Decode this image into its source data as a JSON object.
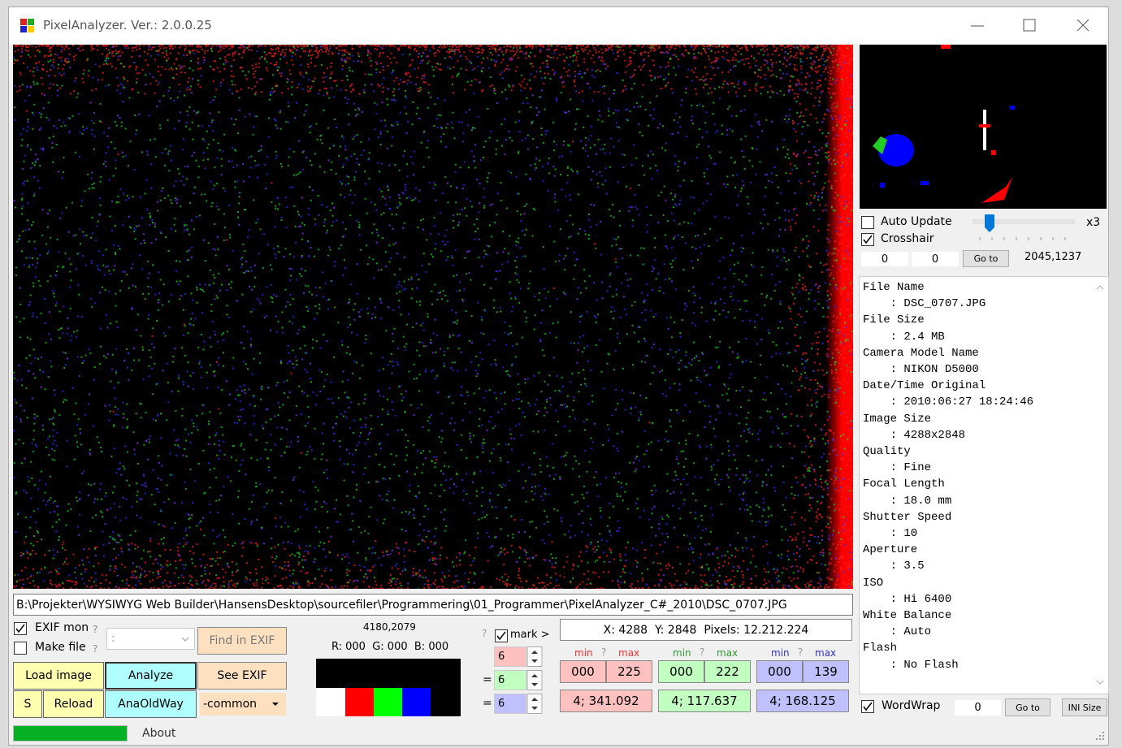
{
  "window": {
    "title": "PixelAnalyzer. Ver.: 2.0.0.25"
  },
  "preview": {
    "auto_update": "Auto Update",
    "crosshair": "Crosshair",
    "zoom": "x3",
    "x": "0",
    "y": "0",
    "goto": "Go to",
    "position": "2045,1237"
  },
  "exif": {
    "lines": [
      "File Name",
      "    : DSC_0707.JPG",
      "File Size",
      "    : 2.4 MB",
      "Camera Model Name",
      "    : NIKON D5000",
      "Date/Time Original",
      "    : 2010:06:27 18:24:46",
      "Image Size",
      "    : 4288x2848",
      "Quality",
      "    : Fine",
      "Focal Length",
      "    : 18.0 mm",
      "Shutter Speed",
      "    : 10",
      "Aperture",
      "    : 3.5",
      "ISO",
      "    : Hi 6400",
      "White Balance",
      "    : Auto",
      "Flash",
      "    : No Flash"
    ],
    "word_wrap": "WordWrap",
    "line": "0",
    "goto": "Go to",
    "ini_size": "INI Size"
  },
  "path": "B:\\Projekter\\WYSIWYG Web Builder\\HansensDesktop\\sourcefiler\\Programmering\\01_Programmer\\PixelAnalyzer_C#_2010\\DSC_0707.JPG",
  "options": {
    "exif_mon": "EXIF mon",
    "exif_mon_help": "?",
    "make_file": "Make file",
    "make_file_help": "?",
    "combo": ":",
    "find_in_exif": "Find in EXIF"
  },
  "buttons": {
    "load_image": "Load image",
    "analyze": "Analyze",
    "see_exif": "See EXIF",
    "s": "S",
    "reload": "Reload",
    "ana_old_way": "AnaOldWay",
    "mode": "-common"
  },
  "pixel": {
    "position": "4180,2079",
    "rgb": "R: 000  G: 000  B: 000"
  },
  "mark": {
    "help": "?",
    "label": "mark >",
    "red": "6",
    "green": "6",
    "blue": "6",
    "eq1": "=",
    "eq2": "="
  },
  "stats": {
    "summary": "X: 4288  Y: 2848  Pixels: 12.212.224",
    "channels": [
      {
        "min_label": "min",
        "help": "?",
        "max_label": "max",
        "min": "000",
        "max": "225",
        "result": "4; 341.092"
      },
      {
        "min_label": "min",
        "help": "?",
        "max_label": "max",
        "min": "000",
        "max": "222",
        "result": "4; 117.637"
      },
      {
        "min_label": "min",
        "help": "?",
        "max_label": "max",
        "min": "000",
        "max": "139",
        "result": "4; 168.125"
      }
    ]
  },
  "status": {
    "about": "About"
  }
}
